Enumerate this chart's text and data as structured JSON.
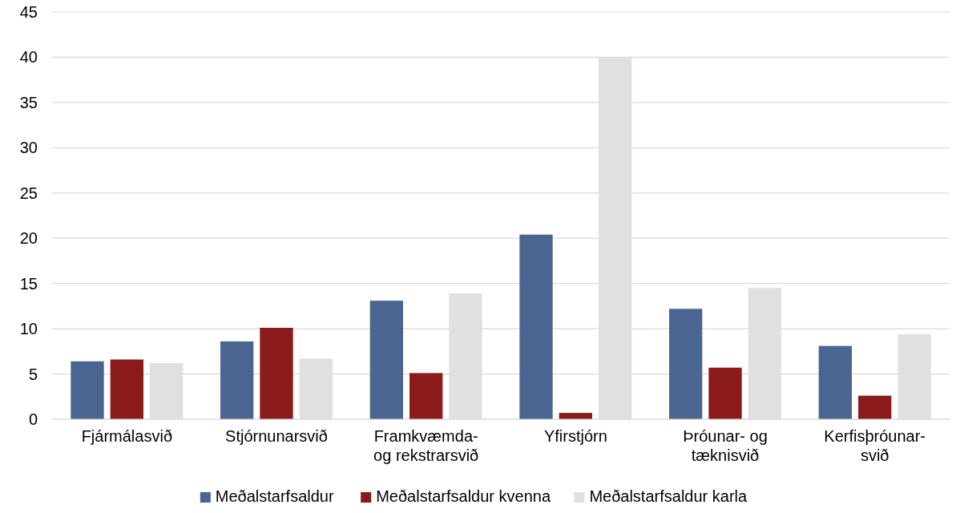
{
  "chart_data": {
    "type": "bar",
    "categories": [
      "Fjármálasvið",
      "Stjórnunarsvið",
      "Framkvæmda-\nog rekstrarsvið",
      "Yfirstjórn",
      "Þróunar- og\ntæknisvið",
      "Kerfisþróunar-\nsvið"
    ],
    "series": [
      {
        "name": "Meðalstarfsaldur",
        "color": "#4a6590",
        "values": [
          6.4,
          8.6,
          13.1,
          20.4,
          12.2,
          8.1
        ]
      },
      {
        "name": "Meðalstarfsaldur kvenna",
        "color": "#8b1a1a",
        "values": [
          6.6,
          10.1,
          5.1,
          0.7,
          5.7,
          2.6
        ]
      },
      {
        "name": "Meðalstarfsaldur karla",
        "color": "#e0e0e0",
        "values": [
          6.2,
          6.7,
          13.9,
          40.0,
          14.5,
          9.4
        ]
      }
    ],
    "ylim": [
      0,
      45
    ],
    "yticks": [
      0,
      5,
      10,
      15,
      20,
      25,
      30,
      35,
      40,
      45
    ],
    "grid": "y",
    "legend": "bottom"
  }
}
